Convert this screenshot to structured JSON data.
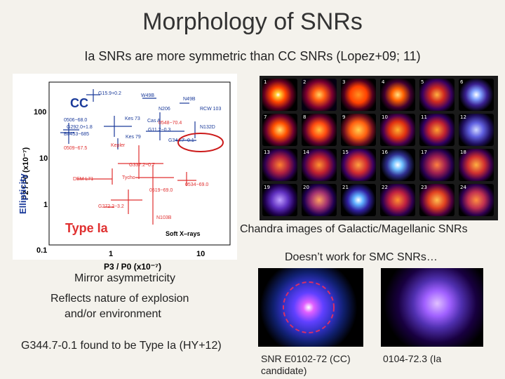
{
  "title": "Morphology of SNRs",
  "subtitle": "Ia SNRs are more symmetric than CC SNRs (Lopez+09; 11)",
  "plot": {
    "y_axis_label": "Ellipticity",
    "y_axis_formula": "P2 / P0 (x10⁻⁷)",
    "x_axis_formula": "P3 / P0 (x10⁻⁷)",
    "x_ticks": [
      "1",
      "10"
    ],
    "y_ticks": [
      "100",
      "10",
      "1",
      "0.1"
    ],
    "region_labels": {
      "cc": "CC",
      "type_ia": "Type Ia",
      "band": "Soft X–rays"
    },
    "cc_points": [
      "G15.9+0.2",
      "W49B",
      "N49B",
      "N206",
      "RCW 103",
      "0506−68.0",
      "Kes 73",
      "G292.0+1.8",
      "Cas A",
      "0548−70.4",
      "B0453−685",
      "G11.2−0.3",
      "N132D",
      "Kes 79",
      "0509−67.5",
      "Kepler",
      "G344.7−0.1"
    ],
    "ia_points": [
      "G337.2−0.7",
      "Tycho",
      "0534−69.0",
      "0519−69.0",
      "DEM L71",
      "G272.2−3.2",
      "N103B"
    ]
  },
  "mosaic": {
    "caption": "Chandra images of Galactic/Magellanic SNRs",
    "tiles": [
      "1",
      "2",
      "3",
      "4",
      "5",
      "6",
      "7",
      "8",
      "9",
      "10",
      "11",
      "12",
      "13",
      "14",
      "15",
      "16",
      "17",
      "18",
      "19",
      "20",
      "21",
      "22",
      "23",
      "24"
    ]
  },
  "smc_note": "Doesn’t work for SMC SNRs…",
  "mirror": "Mirror asymmetricity",
  "reflects_line1": "Reflects nature of explosion",
  "reflects_line2": "and/or environment",
  "g344": "G344.7-0.1 found to be Type Ia (HY+12)",
  "photo1_caption_line1": "SNR E0102-72 (CC)",
  "photo1_caption_line2": "candidate)",
  "photo2_caption": "0104-72.3 (Ia",
  "colors": {
    "accent_red": "#cc1a1a",
    "axis_blue": "#1a3a9a",
    "ia_red": "#e03030"
  }
}
